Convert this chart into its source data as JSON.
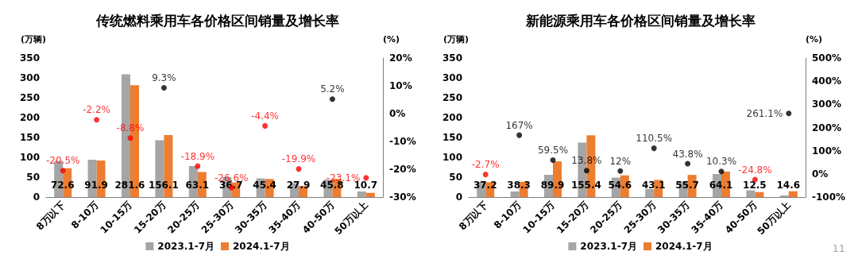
{
  "chart_data": [
    {
      "type": "bar",
      "title": "传统燃料乘用车各价格区间销量及增长率",
      "ylabel": "(万辆)",
      "y2label": "(%)",
      "categories": [
        "8万以下",
        "8-10万",
        "10-15万",
        "15-20万",
        "20-25万",
        "25-30万",
        "30-35万",
        "35-40万",
        "40-50万",
        "50万以上"
      ],
      "series": [
        {
          "name": "2023.1-7月",
          "color": "#a5a5a5",
          "values": [
            91,
            94,
            309,
            143,
            78,
            50,
            47,
            35,
            44,
            14
          ]
        },
        {
          "name": "2024.1-7月",
          "color": "#ed7d31",
          "values": [
            72.6,
            91.9,
            281.6,
            156.1,
            63.1,
            36.7,
            45.4,
            27.9,
            45.8,
            10.7
          ],
          "value_labels": [
            "72.6",
            "91.9",
            "281.6",
            "156.1",
            "63.1",
            "36.7",
            "45.4",
            "27.9",
            "45.8",
            "10.7"
          ]
        },
        {
          "type": "scatter",
          "axis": "y2",
          "marker": "circle",
          "values": [
            -20.5,
            -2.2,
            -8.8,
            9.3,
            -18.9,
            -26.6,
            -4.4,
            -19.9,
            5.2,
            -23.1
          ],
          "value_labels": [
            "-20.5%",
            "-2.2%",
            "-8.8%",
            "9.3%",
            "-18.9%",
            "-26.6%",
            "-4.4%",
            "-19.9%",
            "5.2%",
            "-23.1%"
          ],
          "colors": [
            "#ff0000",
            "#ff0000",
            "#ff0000",
            "#000000",
            "#ff0000",
            "#ff0000",
            "#ff0000",
            "#ff0000",
            "#000000",
            "#ff0000"
          ]
        }
      ],
      "ylim": [
        0,
        350
      ],
      "yticks": [
        0,
        50,
        100,
        150,
        200,
        250,
        300,
        350
      ],
      "y2lim": [
        -30,
        20
      ],
      "y2ticks": [
        {
          "value": -30,
          "label": "-30%"
        },
        {
          "value": -20,
          "label": "-20%"
        },
        {
          "value": -10,
          "label": "-10%"
        },
        {
          "value": 0,
          "label": "0%"
        },
        {
          "value": 10,
          "label": "10%"
        },
        {
          "value": 20,
          "label": "20%"
        }
      ],
      "legend": "bottom"
    },
    {
      "type": "bar",
      "title": "新能源乘用车各价格区间销量及增长率",
      "ylabel": "(万辆)",
      "y2label": "(%)",
      "categories": [
        "8万以下",
        "8-10万",
        "10-15万",
        "15-20万",
        "20-25万",
        "25-30万",
        "30-35万",
        "35-40万",
        "40-50万",
        "50万以上"
      ],
      "series": [
        {
          "name": "2023.1-7月",
          "color": "#a5a5a5",
          "values": [
            38,
            14,
            56,
            137,
            49,
            20,
            39,
            58,
            17,
            4
          ]
        },
        {
          "name": "2024.1-7月",
          "color": "#ed7d31",
          "values": [
            37.2,
            38.3,
            89.9,
            155.4,
            54.6,
            43.1,
            55.7,
            64.1,
            12.5,
            14.6
          ],
          "value_labels": [
            "37.2",
            "38.3",
            "89.9",
            "155.4",
            "54.6",
            "43.1",
            "55.7",
            "64.1",
            "12.5",
            "14.6"
          ]
        },
        {
          "type": "scatter",
          "axis": "y2",
          "marker": "circle",
          "values": [
            -2.7,
            167,
            59.5,
            13.8,
            12,
            110.5,
            43.8,
            10.3,
            -24.8,
            261.1
          ],
          "value_labels": [
            "-2.7%",
            "167%",
            "59.5%",
            "13.8%",
            "12%",
            "110.5%",
            "43.8%",
            "10.3%",
            "-24.8%",
            "261.1%"
          ],
          "colors": [
            "#ff0000",
            "#000000",
            "#000000",
            "#000000",
            "#000000",
            "#000000",
            "#000000",
            "#000000",
            "#ff0000",
            "#000000"
          ]
        }
      ],
      "ylim": [
        0,
        350
      ],
      "yticks": [
        0,
        50,
        100,
        150,
        200,
        250,
        300,
        350
      ],
      "y2lim": [
        -100,
        500
      ],
      "y2ticks": [
        {
          "value": -100,
          "label": "-100%"
        },
        {
          "value": 0,
          "label": "0%"
        },
        {
          "value": 100,
          "label": "100%"
        },
        {
          "value": 200,
          "label": "200%"
        },
        {
          "value": 300,
          "label": "300%"
        },
        {
          "value": 400,
          "label": "400%"
        },
        {
          "value": 500,
          "label": "500%"
        }
      ],
      "legend": "bottom",
      "annotations": [
        "11"
      ]
    }
  ]
}
